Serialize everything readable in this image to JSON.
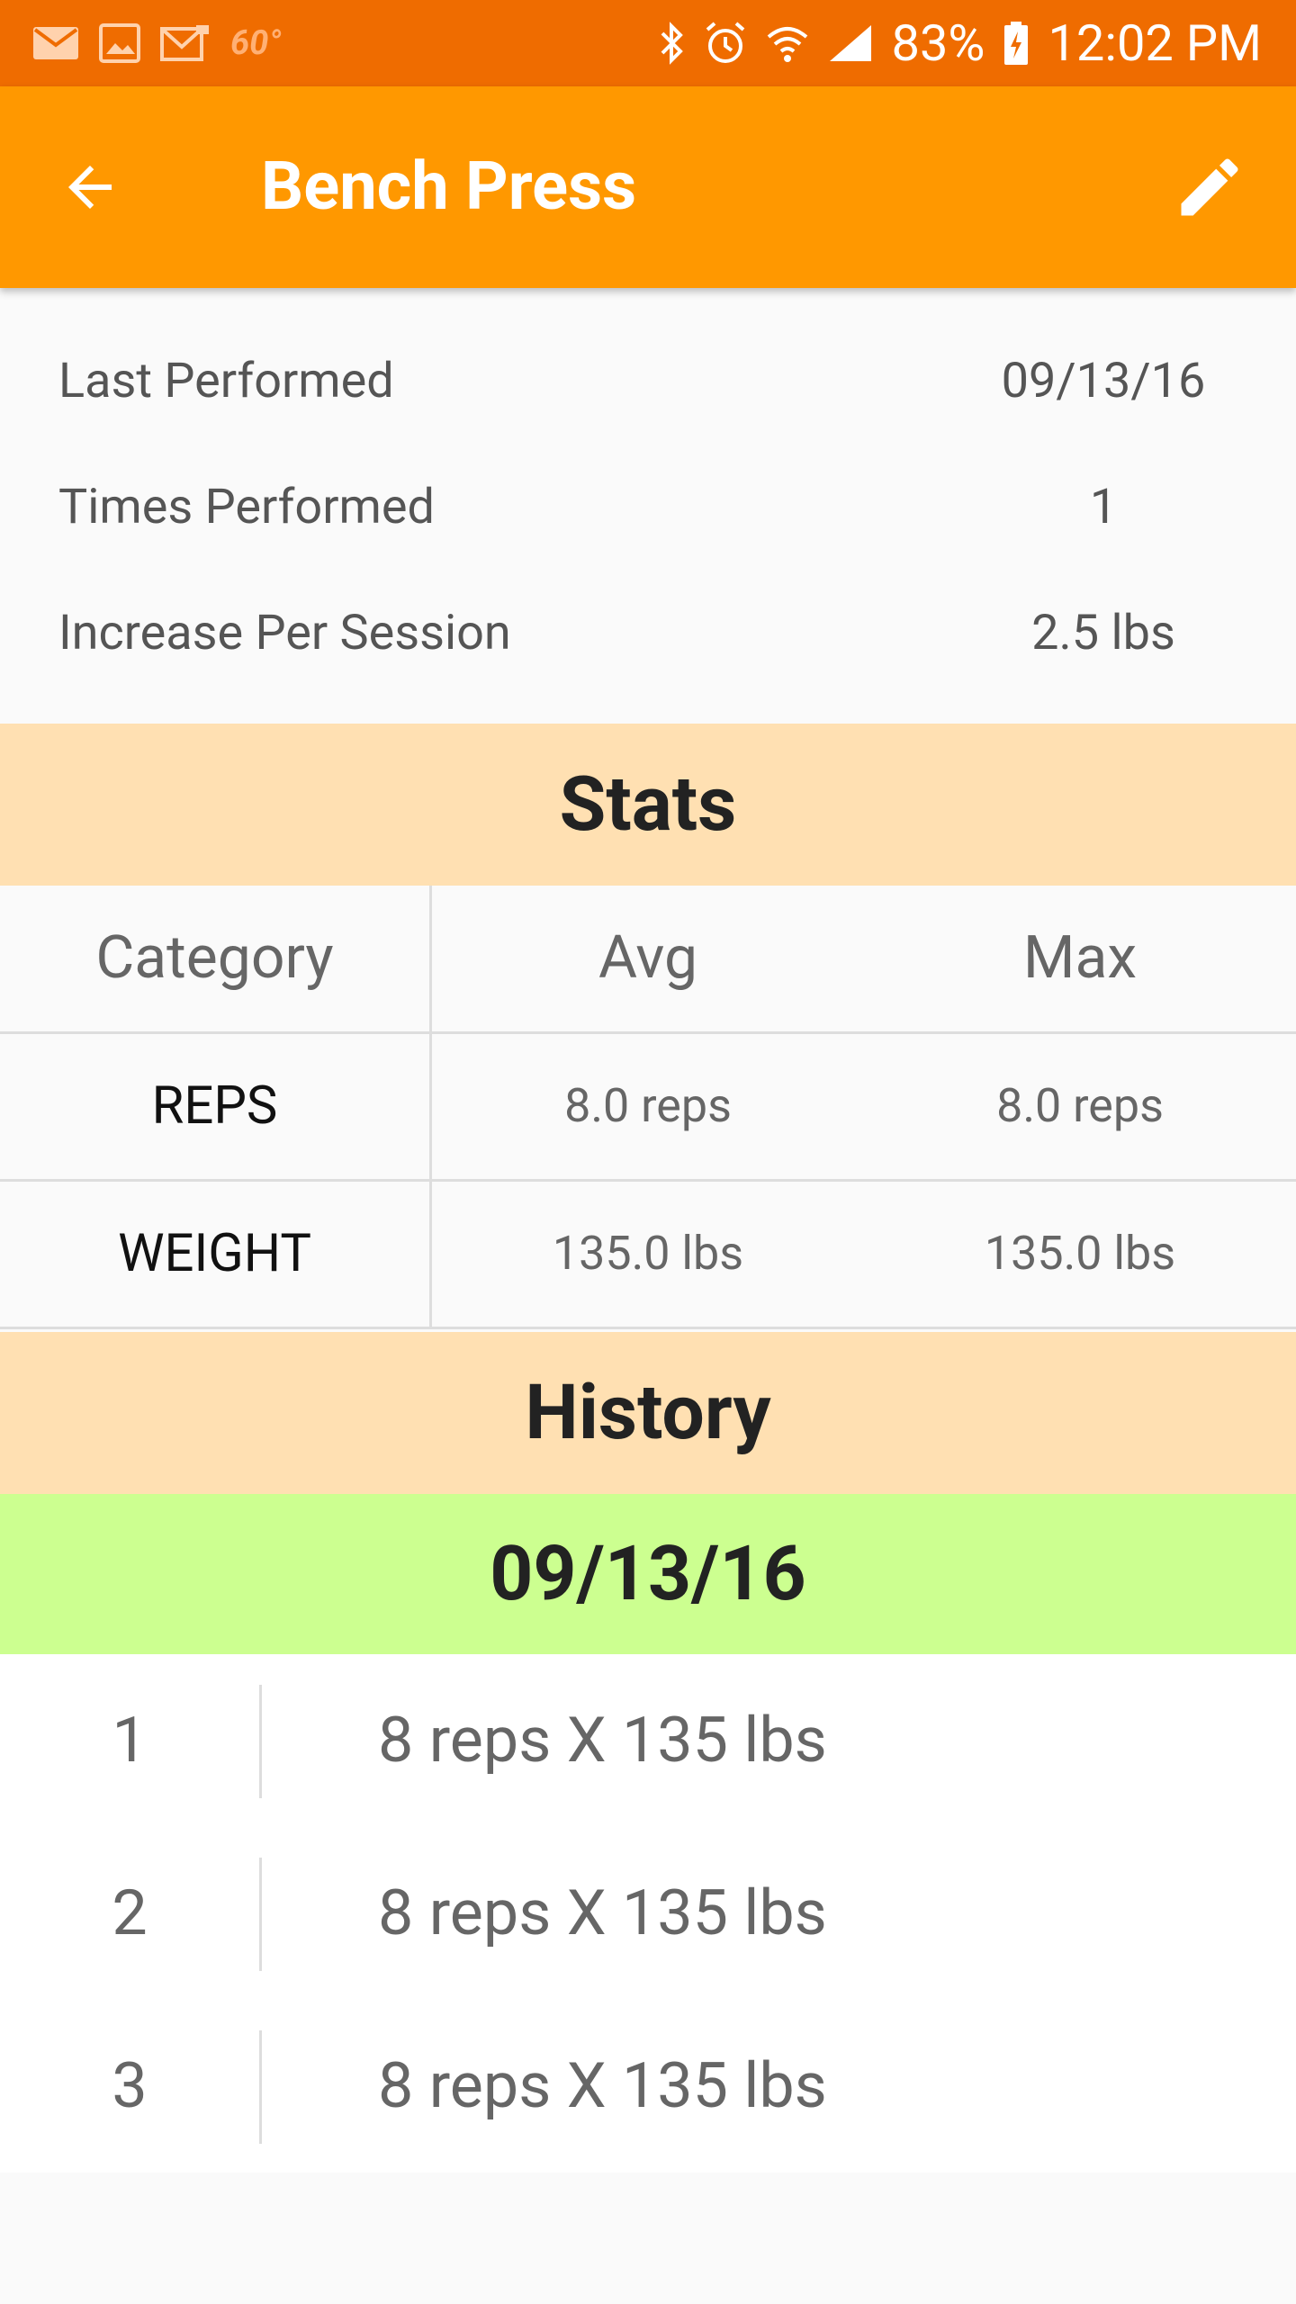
{
  "status_bar": {
    "temp": "60°",
    "battery": "83%",
    "time": "12:02 PM",
    "icons": [
      "mail-icon",
      "gallery-icon",
      "gmail-icon",
      "bluetooth-icon",
      "alarm-icon",
      "wifi-icon",
      "signal-icon",
      "battery-icon"
    ]
  },
  "app_bar": {
    "title": "Bench Press",
    "back_icon": "arrow-back-icon",
    "edit_icon": "pencil-icon",
    "color": "#ff9800"
  },
  "info": {
    "rows": [
      {
        "label": "Last Performed",
        "value": "09/13/16"
      },
      {
        "label": "Times Performed",
        "value": "1"
      },
      {
        "label": "Increase Per Session",
        "value": "2.5 lbs"
      }
    ]
  },
  "stats": {
    "title": "Stats",
    "headers": [
      "Category",
      "Avg",
      "Max"
    ],
    "rows": [
      [
        "REPS",
        "8.0 reps",
        "8.0 reps"
      ],
      [
        "WEIGHT",
        "135.0 lbs",
        "135.0 lbs"
      ]
    ],
    "color": "#ffe0b2"
  },
  "history": {
    "title": "History",
    "date": "09/13/16",
    "date_color": "#ccff90",
    "sets": [
      {
        "num": "1",
        "text": "8 reps X 135 lbs"
      },
      {
        "num": "2",
        "text": "8 reps X 135 lbs"
      },
      {
        "num": "3",
        "text": "8 reps X 135 lbs"
      }
    ]
  }
}
